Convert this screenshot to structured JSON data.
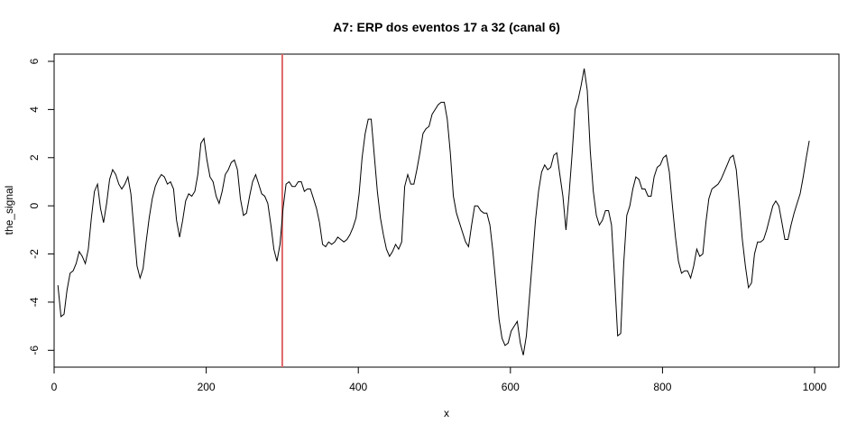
{
  "chart_data": {
    "type": "line",
    "title": "A7: ERP dos eventos 17 a 32 (canal 6)",
    "xlabel": "x",
    "ylabel": "the_signal",
    "xlim": [
      0,
      1032
    ],
    "ylim": [
      -6.7,
      6.3
    ],
    "x_ticks": [
      0,
      200,
      400,
      600,
      800,
      1000
    ],
    "y_ticks": [
      -6,
      -4,
      -2,
      0,
      2,
      4,
      6
    ],
    "vline": {
      "x": 300,
      "color": "#e06666"
    },
    "line_color": "#000000",
    "series": [
      {
        "points": [
          [
            5,
            -3.3
          ],
          [
            9,
            -4.6
          ],
          [
            13,
            -4.5
          ],
          [
            17,
            -3.5
          ],
          [
            21,
            -2.8
          ],
          [
            25,
            -2.7
          ],
          [
            29,
            -2.4
          ],
          [
            33,
            -1.9
          ],
          [
            37,
            -2.1
          ],
          [
            41,
            -2.4
          ],
          [
            45,
            -1.8
          ],
          [
            49,
            -0.5
          ],
          [
            53,
            0.6
          ],
          [
            57,
            0.9
          ],
          [
            61,
            -0.1
          ],
          [
            65,
            -0.7
          ],
          [
            69,
            0.1
          ],
          [
            73,
            1.1
          ],
          [
            77,
            1.5
          ],
          [
            81,
            1.3
          ],
          [
            85,
            0.9
          ],
          [
            89,
            0.7
          ],
          [
            93,
            0.9
          ],
          [
            97,
            1.2
          ],
          [
            101,
            0.5
          ],
          [
            105,
            -1.0
          ],
          [
            109,
            -2.5
          ],
          [
            113,
            -3.0
          ],
          [
            117,
            -2.6
          ],
          [
            121,
            -1.5
          ],
          [
            125,
            -0.5
          ],
          [
            129,
            0.3
          ],
          [
            133,
            0.8
          ],
          [
            137,
            1.1
          ],
          [
            141,
            1.3
          ],
          [
            145,
            1.2
          ],
          [
            149,
            0.9
          ],
          [
            153,
            1.0
          ],
          [
            157,
            0.7
          ],
          [
            161,
            -0.6
          ],
          [
            165,
            -1.3
          ],
          [
            169,
            -0.6
          ],
          [
            173,
            0.2
          ],
          [
            177,
            0.5
          ],
          [
            181,
            0.4
          ],
          [
            185,
            0.6
          ],
          [
            189,
            1.3
          ],
          [
            193,
            2.6
          ],
          [
            197,
            2.8
          ],
          [
            201,
            1.9
          ],
          [
            205,
            1.2
          ],
          [
            209,
            1.0
          ],
          [
            213,
            0.4
          ],
          [
            217,
            0.1
          ],
          [
            221,
            0.6
          ],
          [
            225,
            1.3
          ],
          [
            229,
            1.5
          ],
          [
            233,
            1.8
          ],
          [
            237,
            1.9
          ],
          [
            241,
            1.5
          ],
          [
            245,
            0.3
          ],
          [
            249,
            -0.4
          ],
          [
            253,
            -0.3
          ],
          [
            257,
            0.4
          ],
          [
            261,
            1.0
          ],
          [
            265,
            1.3
          ],
          [
            269,
            0.9
          ],
          [
            273,
            0.5
          ],
          [
            277,
            0.4
          ],
          [
            281,
            0.1
          ],
          [
            285,
            -0.8
          ],
          [
            289,
            -1.8
          ],
          [
            293,
            -2.3
          ],
          [
            297,
            -1.6
          ],
          [
            301,
            -0.1
          ],
          [
            305,
            0.9
          ],
          [
            309,
            1.0
          ],
          [
            313,
            0.8
          ],
          [
            317,
            0.8
          ],
          [
            321,
            1.0
          ],
          [
            325,
            1.0
          ],
          [
            329,
            0.6
          ],
          [
            333,
            0.7
          ],
          [
            337,
            0.7
          ],
          [
            341,
            0.3
          ],
          [
            345,
            -0.1
          ],
          [
            349,
            -0.7
          ],
          [
            353,
            -1.6
          ],
          [
            357,
            -1.7
          ],
          [
            361,
            -1.5
          ],
          [
            365,
            -1.6
          ],
          [
            369,
            -1.5
          ],
          [
            373,
            -1.3
          ],
          [
            377,
            -1.4
          ],
          [
            381,
            -1.5
          ],
          [
            385,
            -1.4
          ],
          [
            389,
            -1.2
          ],
          [
            393,
            -0.9
          ],
          [
            397,
            -0.5
          ],
          [
            401,
            0.5
          ],
          [
            405,
            2.0
          ],
          [
            409,
            3.0
          ],
          [
            413,
            3.6
          ],
          [
            417,
            3.6
          ],
          [
            421,
            2.1
          ],
          [
            425,
            0.6
          ],
          [
            429,
            -0.5
          ],
          [
            433,
            -1.2
          ],
          [
            437,
            -1.8
          ],
          [
            441,
            -2.1
          ],
          [
            445,
            -1.9
          ],
          [
            449,
            -1.6
          ],
          [
            453,
            -1.8
          ],
          [
            457,
            -1.5
          ],
          [
            461,
            0.8
          ],
          [
            465,
            1.3
          ],
          [
            469,
            0.9
          ],
          [
            473,
            0.9
          ],
          [
            477,
            1.5
          ],
          [
            481,
            2.2
          ],
          [
            485,
            3.0
          ],
          [
            489,
            3.2
          ],
          [
            493,
            3.3
          ],
          [
            497,
            3.8
          ],
          [
            501,
            4.0
          ],
          [
            505,
            4.2
          ],
          [
            509,
            4.3
          ],
          [
            513,
            4.3
          ],
          [
            517,
            3.6
          ],
          [
            521,
            2.2
          ],
          [
            525,
            0.4
          ],
          [
            529,
            -0.3
          ],
          [
            533,
            -0.7
          ],
          [
            537,
            -1.1
          ],
          [
            541,
            -1.5
          ],
          [
            545,
            -1.7
          ],
          [
            549,
            -0.8
          ],
          [
            553,
            0.0
          ],
          [
            557,
            0.0
          ],
          [
            561,
            -0.2
          ],
          [
            565,
            -0.3
          ],
          [
            569,
            -0.3
          ],
          [
            573,
            -0.8
          ],
          [
            577,
            -1.9
          ],
          [
            581,
            -3.3
          ],
          [
            585,
            -4.7
          ],
          [
            589,
            -5.5
          ],
          [
            593,
            -5.8
          ],
          [
            597,
            -5.7
          ],
          [
            601,
            -5.2
          ],
          [
            605,
            -5.0
          ],
          [
            609,
            -4.8
          ],
          [
            613,
            -5.7
          ],
          [
            617,
            -6.2
          ],
          [
            621,
            -5.4
          ],
          [
            625,
            -3.8
          ],
          [
            629,
            -2.2
          ],
          [
            633,
            -0.6
          ],
          [
            637,
            0.6
          ],
          [
            641,
            1.4
          ],
          [
            645,
            1.7
          ],
          [
            649,
            1.5
          ],
          [
            653,
            1.6
          ],
          [
            657,
            2.1
          ],
          [
            661,
            2.2
          ],
          [
            665,
            1.3
          ],
          [
            669,
            0.4
          ],
          [
            673,
            -1.0
          ],
          [
            677,
            0.4
          ],
          [
            681,
            2.1
          ],
          [
            685,
            4.0
          ],
          [
            689,
            4.4
          ],
          [
            693,
            5.0
          ],
          [
            697,
            5.7
          ],
          [
            701,
            4.8
          ],
          [
            705,
            2.3
          ],
          [
            709,
            0.6
          ],
          [
            713,
            -0.4
          ],
          [
            717,
            -0.8
          ],
          [
            721,
            -0.6
          ],
          [
            725,
            -0.2
          ],
          [
            729,
            -0.2
          ],
          [
            733,
            -0.8
          ],
          [
            737,
            -3.0
          ],
          [
            741,
            -5.4
          ],
          [
            745,
            -5.3
          ],
          [
            749,
            -2.4
          ],
          [
            753,
            -0.4
          ],
          [
            757,
            0.0
          ],
          [
            761,
            0.7
          ],
          [
            765,
            1.2
          ],
          [
            769,
            1.1
          ],
          [
            773,
            0.7
          ],
          [
            777,
            0.7
          ],
          [
            781,
            0.4
          ],
          [
            785,
            0.4
          ],
          [
            789,
            1.2
          ],
          [
            793,
            1.6
          ],
          [
            797,
            1.7
          ],
          [
            801,
            2.0
          ],
          [
            805,
            2.1
          ],
          [
            809,
            1.4
          ],
          [
            813,
            0.0
          ],
          [
            817,
            -1.3
          ],
          [
            821,
            -2.3
          ],
          [
            825,
            -2.8
          ],
          [
            829,
            -2.7
          ],
          [
            833,
            -2.7
          ],
          [
            837,
            -3.0
          ],
          [
            841,
            -2.5
          ],
          [
            845,
            -1.8
          ],
          [
            849,
            -2.1
          ],
          [
            853,
            -2.0
          ],
          [
            857,
            -0.7
          ],
          [
            861,
            0.3
          ],
          [
            865,
            0.7
          ],
          [
            869,
            0.8
          ],
          [
            873,
            0.9
          ],
          [
            877,
            1.1
          ],
          [
            881,
            1.4
          ],
          [
            885,
            1.7
          ],
          [
            889,
            2.0
          ],
          [
            893,
            2.1
          ],
          [
            897,
            1.5
          ],
          [
            901,
            0.1
          ],
          [
            905,
            -1.4
          ],
          [
            909,
            -2.5
          ],
          [
            913,
            -3.4
          ],
          [
            917,
            -3.2
          ],
          [
            921,
            -2.0
          ],
          [
            925,
            -1.5
          ],
          [
            929,
            -1.5
          ],
          [
            933,
            -1.4
          ],
          [
            937,
            -1.0
          ],
          [
            941,
            -0.5
          ],
          [
            945,
            0.0
          ],
          [
            949,
            0.2
          ],
          [
            953,
            0.0
          ],
          [
            957,
            -0.7
          ],
          [
            961,
            -1.4
          ],
          [
            965,
            -1.4
          ],
          [
            969,
            -0.8
          ],
          [
            973,
            -0.3
          ],
          [
            977,
            0.1
          ],
          [
            981,
            0.5
          ],
          [
            985,
            1.2
          ],
          [
            989,
            2.0
          ],
          [
            993,
            2.7
          ]
        ]
      }
    ]
  }
}
